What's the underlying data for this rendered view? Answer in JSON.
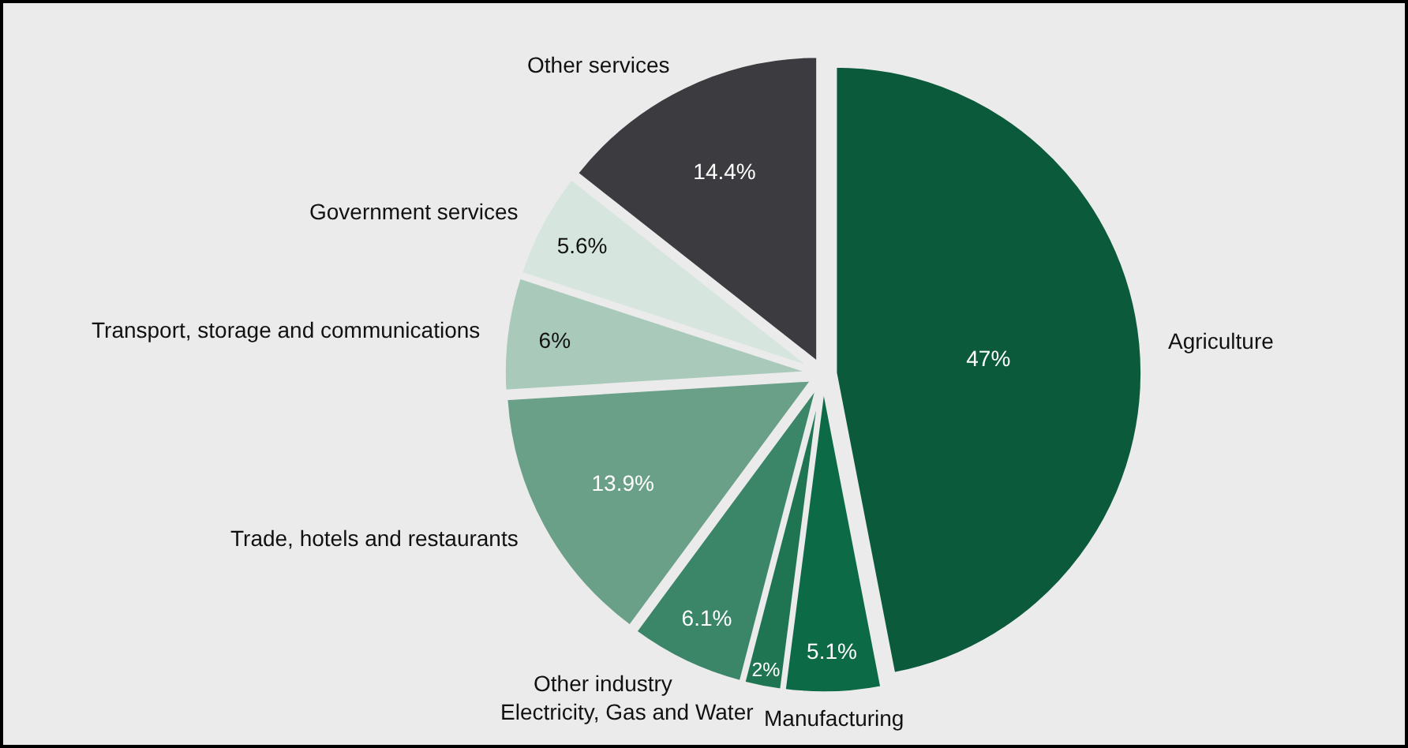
{
  "chart_data": {
    "type": "pie",
    "categories": [
      "Agriculture",
      "Manufacturing",
      "Electricity, Gas and Water",
      "Other industry",
      "Trade, hotels and restaurants",
      "Transport, storage and communications",
      "Government services",
      "Other services"
    ],
    "values": [
      47,
      5.1,
      2,
      6.1,
      13.9,
      6,
      5.6,
      14.4
    ],
    "value_labels": [
      "47%",
      "5.1%",
      "2%",
      "6.1%",
      "13.9%",
      "6%",
      "5.6%",
      "14.4%"
    ],
    "colors": [
      "#0b5a3c",
      "#0d6a47",
      "#1f7552",
      "#3b8669",
      "#6a9f88",
      "#a9c9ba",
      "#d6e5dd",
      "#3b3b40"
    ],
    "legend": false
  }
}
